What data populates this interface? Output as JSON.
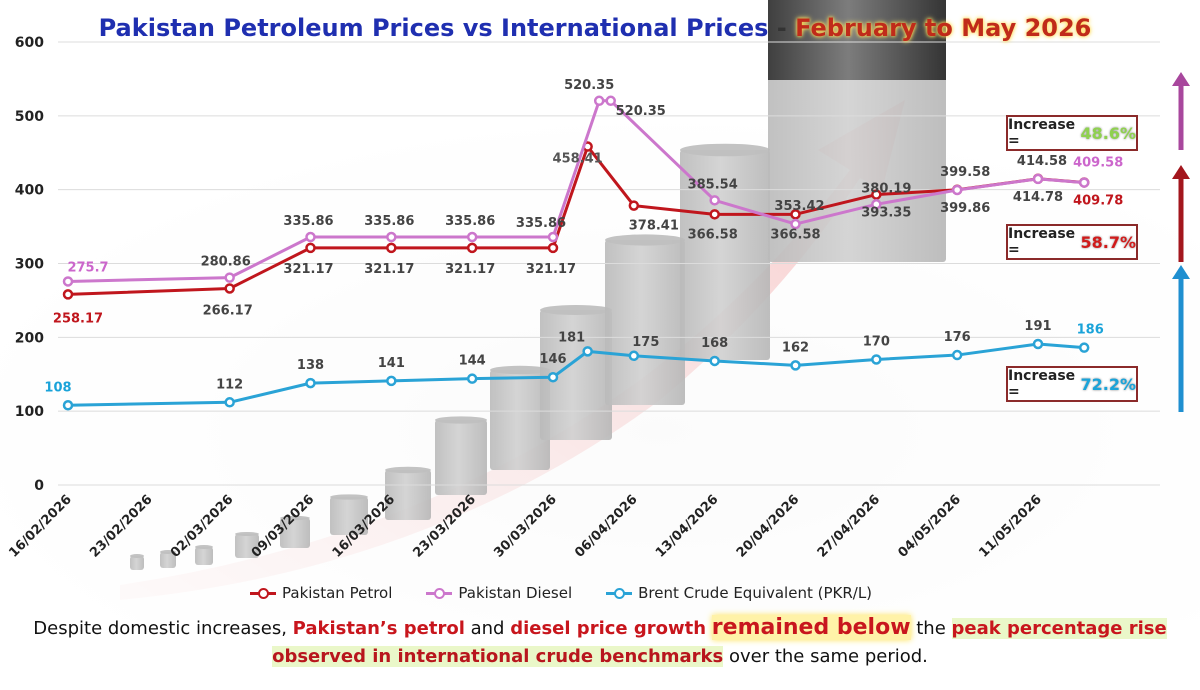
{
  "title": {
    "part1": "Pakistan Petroleum Prices vs International Prices",
    "sep": " - ",
    "part2": "February to May 2026"
  },
  "chart_data": {
    "type": "line",
    "categories": [
      "16/02/2026",
      "23/02/2026",
      "02/03/2026",
      "09/03/2026",
      "16/03/2026",
      "23/03/2026",
      "30/03/2026",
      "06/04/2026",
      "13/04/2026",
      "20/04/2026",
      "27/04/2026",
      "04/05/2026",
      "11/05/2026"
    ],
    "ylim": [
      0,
      600
    ],
    "yticks": [
      0,
      100,
      200,
      300,
      400,
      500,
      600
    ],
    "grid": true,
    "legend_position": "bottom",
    "series": [
      {
        "name": "Pakistan Petrol",
        "color": "#c0161d",
        "points": [
          {
            "x": "16/02/2026",
            "y": 258.17,
            "label": "258.17"
          },
          {
            "x": "02/03/2026",
            "y": 266.17,
            "label": "266.17"
          },
          {
            "x": "09/03/2026",
            "y": 321.17,
            "label": "321.17"
          },
          {
            "x": "16/03/2026",
            "y": 321.17,
            "label": "321.17"
          },
          {
            "x": "23/03/2026",
            "y": 321.17,
            "label": "321.17"
          },
          {
            "x": "30/03/2026",
            "y": 321.17,
            "label": "321.17"
          },
          {
            "x": "02/04/2026",
            "y": 458.41,
            "label": "458.41"
          },
          {
            "x": "06/04/2026",
            "y": 378.41,
            "label": "378.41"
          },
          {
            "x": "13/04/2026",
            "y": 366.58,
            "label": "366.58"
          },
          {
            "x": "20/04/2026",
            "y": 366.58,
            "label": "366.58"
          },
          {
            "x": "27/04/2026",
            "y": 393.35,
            "label": "393.35"
          },
          {
            "x": "04/05/2026",
            "y": 399.86,
            "label": "399.86"
          },
          {
            "x": "11/05/2026",
            "y": 414.78,
            "label": "414.78"
          },
          {
            "x": "15/05/2026",
            "y": 409.78,
            "label": "409.78"
          }
        ]
      },
      {
        "name": "Pakistan Diesel",
        "color": "#cc77cc",
        "points": [
          {
            "x": "16/02/2026",
            "y": 275.7,
            "label": "275.7"
          },
          {
            "x": "02/03/2026",
            "y": 280.86,
            "label": "280.86"
          },
          {
            "x": "09/03/2026",
            "y": 335.86,
            "label": "335.86"
          },
          {
            "x": "16/03/2026",
            "y": 335.86,
            "label": "335.86"
          },
          {
            "x": "23/03/2026",
            "y": 335.86,
            "label": "335.86"
          },
          {
            "x": "30/03/2026",
            "y": 335.86,
            "label": "335.86"
          },
          {
            "x": "03/04/2026",
            "y": 520.35,
            "label": "520.35"
          },
          {
            "x": "04/04/2026",
            "y": 520.35,
            "label": "520.35"
          },
          {
            "x": "13/04/2026",
            "y": 385.54,
            "label": "385.54"
          },
          {
            "x": "20/04/2026",
            "y": 353.42,
            "label": "353.42"
          },
          {
            "x": "27/04/2026",
            "y": 380.19,
            "label": "380.19"
          },
          {
            "x": "04/05/2026",
            "y": 399.58,
            "label": "399.58"
          },
          {
            "x": "11/05/2026",
            "y": 414.58,
            "label": "414.58"
          },
          {
            "x": "15/05/2026",
            "y": 409.58,
            "label": "409.58"
          }
        ]
      },
      {
        "name": "Brent Crude Equivalent (PKR/L)",
        "color": "#2aa3d6",
        "points": [
          {
            "x": "16/02/2026",
            "y": 108,
            "label": "108"
          },
          {
            "x": "02/03/2026",
            "y": 112,
            "label": "112"
          },
          {
            "x": "09/03/2026",
            "y": 138,
            "label": "138"
          },
          {
            "x": "16/03/2026",
            "y": 141,
            "label": "141"
          },
          {
            "x": "23/03/2026",
            "y": 144,
            "label": "144"
          },
          {
            "x": "30/03/2026",
            "y": 146,
            "label": "146"
          },
          {
            "x": "02/04/2026",
            "y": 181,
            "label": "181"
          },
          {
            "x": "06/04/2026",
            "y": 175,
            "label": "175"
          },
          {
            "x": "13/04/2026",
            "y": 168,
            "label": "168"
          },
          {
            "x": "20/04/2026",
            "y": 162,
            "label": "162"
          },
          {
            "x": "27/04/2026",
            "y": 170,
            "label": "170"
          },
          {
            "x": "04/05/2026",
            "y": 176,
            "label": "176"
          },
          {
            "x": "11/05/2026",
            "y": 191,
            "label": "191"
          },
          {
            "x": "15/05/2026",
            "y": 186,
            "label": "186"
          }
        ]
      }
    ]
  },
  "increases": [
    {
      "label": "Increase =",
      "value": "48.6%",
      "color": "#8fd14f",
      "arrow_color": "#a8479d"
    },
    {
      "label": "Increase =",
      "value": "58.7%",
      "color": "#d11b1b",
      "arrow_color": "#a3161d"
    },
    {
      "label": "Increase =",
      "value": "72.2%",
      "color": "#1aa3d9",
      "arrow_color": "#1f8fd0"
    }
  ],
  "legend": [
    "Pakistan Petrol",
    "Pakistan Diesel",
    "Brent Crude Equivalent (PKR/L)"
  ],
  "caption": {
    "p1": "Despite domestic increases, ",
    "p2": "Pakistan’s petrol",
    "p3": " and ",
    "p4": "diesel price growth",
    "p5": " ",
    "p6": "remained below",
    "p7": " the ",
    "p8": "peak percentage rise",
    "p9": "observed in international crude benchmarks",
    "p10": " over the same period."
  }
}
